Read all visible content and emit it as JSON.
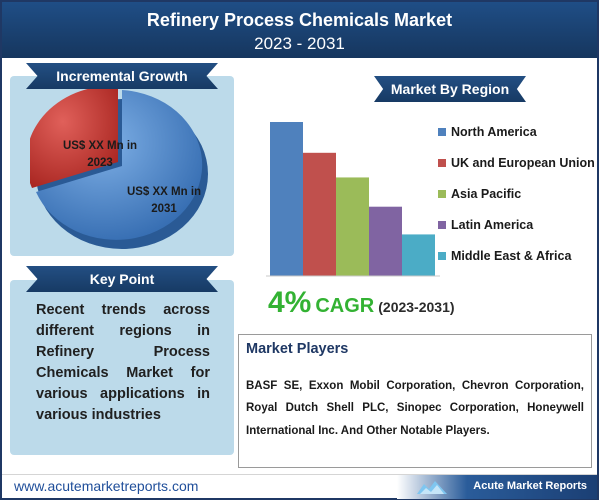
{
  "header": {
    "title": "Refinery Process Chemicals Market",
    "years": "2023 - 2031"
  },
  "incremental": {
    "banner": "Incremental Growth",
    "label_2023": "US$ XX Mn in 2023",
    "label_2031": "US$ XX Mn in 2031",
    "colors": {
      "slice_2023": "#c0332f",
      "slice_2031": "#4a86cf"
    }
  },
  "keypoint": {
    "banner": "Key Point",
    "text": "Recent trends across different regions in Refinery Process Chemicals Market for various applications in various industries"
  },
  "region": {
    "banner": "Market By Region",
    "legend": [
      {
        "label": "North America",
        "color": "#4f81bd"
      },
      {
        "label": "UK and European Union",
        "color": "#c0504d"
      },
      {
        "label": "Asia Pacific",
        "color": "#9bbb59"
      },
      {
        "label": "Latin America",
        "color": "#8064a2"
      },
      {
        "label": "Middle East & Africa",
        "color": "#4bacc6"
      }
    ]
  },
  "chart_data": {
    "type": "bar",
    "categories": [
      "North America",
      "UK and European Union",
      "Asia Pacific",
      "Latin America",
      "Middle East & Africa"
    ],
    "values": [
      100,
      80,
      64,
      45,
      27
    ],
    "ylim": [
      0,
      100
    ],
    "grid": false,
    "legend_position": "right"
  },
  "cagr": {
    "percent": "4%",
    "label": "CAGR",
    "range": "(2023-2031)"
  },
  "players": {
    "title": "Market Players",
    "text": "BASF SE, Exxon Mobil Corporation, Chevron Corporation, Royal Dutch Shell PLC, Sinopec Corporation, Honeywell International Inc. And Other Notable Players."
  },
  "footer": {
    "url": "www.acutemarketreports.com",
    "brand": "Acute Market Reports"
  }
}
